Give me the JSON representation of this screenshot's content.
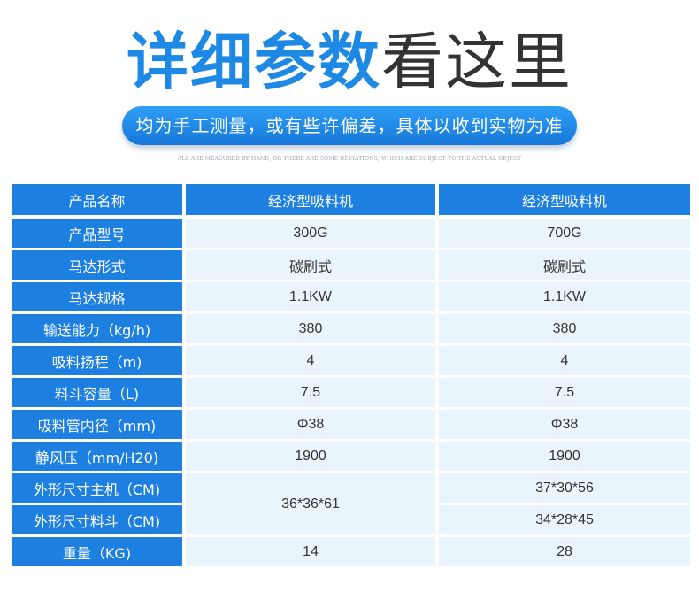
{
  "header": {
    "title_bold": "详细参数",
    "title_light": "看这里",
    "banner": "均为手工测量，或有些许偏差，具体以收到实物为准",
    "note": "ALL ARE MEASURED BY HAND, OR THERE ARE SOME DEVIATIONS, WHICH ARE SUBJECT TO THE ACTUAL OBJECT"
  },
  "table": {
    "columns": [
      "产品名称",
      "经济型吸料机",
      "经济型吸料机"
    ],
    "rows": [
      {
        "label": "产品型号",
        "a": "300G",
        "b": "700G"
      },
      {
        "label": "马达形式",
        "a": "碳刷式",
        "b": "碳刷式"
      },
      {
        "label": "马达规格",
        "a": "1.1KW",
        "b": "1.1KW"
      },
      {
        "label": "输送能力（kg/h)",
        "a": "380",
        "b": "380"
      },
      {
        "label": "吸料扬程（m)",
        "a": "4",
        "b": "4"
      },
      {
        "label": "料斗容量（L)",
        "a": "7.5",
        "b": "7.5"
      },
      {
        "label": "吸料管内径（mm)",
        "a": "Φ38",
        "b": "Φ38"
      },
      {
        "label": "静风压（mm/H20)",
        "a": "1900",
        "b": "1900"
      },
      {
        "label": "外形尺寸主机（CM)",
        "a": "36*36*61",
        "b": "37*30*56"
      },
      {
        "label": "外形尺寸料斗（CM)",
        "a": "",
        "b": "34*28*45"
      },
      {
        "label": "重量（KG)",
        "a": "14",
        "b": "28"
      }
    ]
  }
}
